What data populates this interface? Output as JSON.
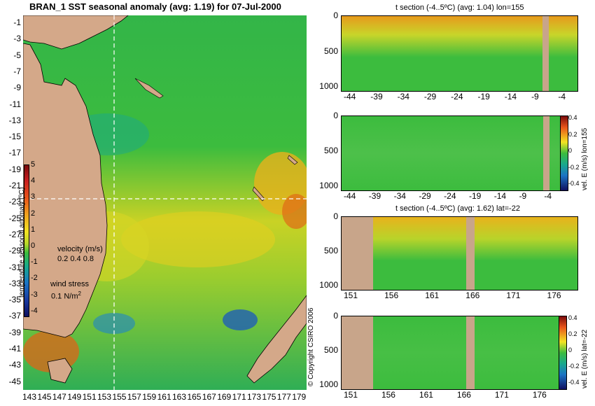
{
  "map": {
    "title": "BRAN_1 SST seasonal anomaly (avg: 1.19) for 07-Jul-2000",
    "lat_labels": [
      "-1",
      "-3",
      "-5",
      "-7",
      "-9",
      "-11",
      "-13",
      "-15",
      "-17",
      "-19",
      "-21",
      "-23",
      "-25",
      "-27",
      "-29",
      "-31",
      "-33",
      "-35",
      "-37",
      "-39",
      "-41",
      "-43",
      "-45"
    ],
    "lon_labels": [
      "143",
      "145",
      "147",
      "149",
      "151",
      "153",
      "155",
      "157",
      "159",
      "161",
      "163",
      "165",
      "167",
      "169",
      "171",
      "173",
      "175",
      "177",
      "179"
    ],
    "colorbar_ticks": [
      "5",
      "4",
      "3",
      "2",
      "1",
      "0",
      "-1",
      "-2",
      "-3",
      "-4"
    ],
    "colorbar_label": "temperature seasonal anomaly (ºC)",
    "velocity_title": "velocity (m/s)",
    "velocity_scale": "0.2 0.4 0.8",
    "wind_title": "wind stress",
    "wind_scale": "0.1 N/m",
    "wind_sup": "2",
    "copyright": "© Copyright CSIRO 2006"
  },
  "panel1": {
    "title": "t section (-4..5ºC) (avg: 1.04) lon=155",
    "y_ticks": [
      "0",
      "500",
      "1000"
    ],
    "x_ticks": [
      "-44",
      "-39",
      "-34",
      "-29",
      "-24",
      "-19",
      "-14",
      "-9",
      "-4"
    ]
  },
  "panel2": {
    "y_ticks": [
      "0",
      "500",
      "1000"
    ],
    "x_ticks": [
      "-44",
      "-39",
      "-34",
      "-29",
      "-24",
      "-19",
      "-14",
      "-9",
      "-4"
    ],
    "cbar_ticks": [
      "0.4",
      "0.2",
      "0",
      "-0.2",
      "-0.4"
    ],
    "cbar_label": "vel. E (m/s) lon=155"
  },
  "panel3": {
    "title": "t section (-4..5ºC) (avg: 1.62) lat=-22",
    "y_ticks": [
      "0",
      "500",
      "1000"
    ],
    "x_ticks": [
      "151",
      "156",
      "161",
      "166",
      "171",
      "176"
    ]
  },
  "panel4": {
    "y_ticks": [
      "0",
      "500",
      "1000"
    ],
    "x_ticks": [
      "151",
      "156",
      "161",
      "166",
      "171",
      "176"
    ],
    "cbar_ticks": [
      "0.4",
      "0.2",
      "0",
      "-0.2",
      "-0.4"
    ],
    "cbar_label": "vel. E (m/s) lat=-22"
  },
  "colors": {
    "land": "#d4a889",
    "ocean": "#3cb94a",
    "grid": "#ffffff"
  }
}
